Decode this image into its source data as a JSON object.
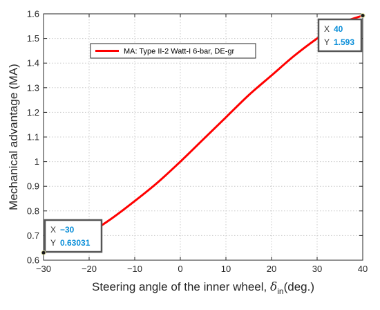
{
  "chart_data": {
    "type": "line",
    "xlabel": "Steering angle of the inner wheel, ",
    "xlabel_symbol": "δ",
    "xlabel_subscript": "in",
    "xlabel_suffix": "(deg.)",
    "ylabel": "Mechanical advantage (MA)",
    "xlim": [
      -30,
      40
    ],
    "ylim": [
      0.6,
      1.6
    ],
    "xticks": [
      -30,
      -20,
      -10,
      0,
      10,
      20,
      30,
      40
    ],
    "yticks": [
      0.6,
      0.7,
      0.8,
      0.9,
      1,
      1.1,
      1.2,
      1.3,
      1.4,
      1.5,
      1.6
    ],
    "xtick_labels": [
      "−30",
      "−20",
      "−10",
      "0",
      "10",
      "20",
      "30",
      "40"
    ],
    "ytick_labels": [
      "0.6",
      "0.7",
      "0.8",
      "0.9",
      "1",
      "1.1",
      "1.2",
      "1.3",
      "1.4",
      "1.5",
      "1.6"
    ],
    "grid": true,
    "legend_position": "top-center",
    "series": [
      {
        "name": "MA: Type II-2 Watt-I 6-bar, DE-gr",
        "color": "#ff0000",
        "x": [
          -30,
          -25,
          -20,
          -15,
          -10,
          -5,
          0,
          5,
          10,
          15,
          20,
          25,
          30,
          35,
          40
        ],
        "y": [
          0.63031,
          0.665,
          0.71,
          0.77,
          0.84,
          0.915,
          1.0,
          1.09,
          1.18,
          1.27,
          1.35,
          1.43,
          1.5,
          1.56,
          1.593
        ]
      }
    ],
    "datatips": [
      {
        "x_key": "X",
        "y_key": "Y",
        "x": "−30",
        "y": "0.63031",
        "position": "bottom-left"
      },
      {
        "x_key": "X",
        "y_key": "Y",
        "x": "40",
        "y": "1.593",
        "position": "top-right"
      }
    ],
    "datatip_value_color": "#0a8ed8"
  }
}
